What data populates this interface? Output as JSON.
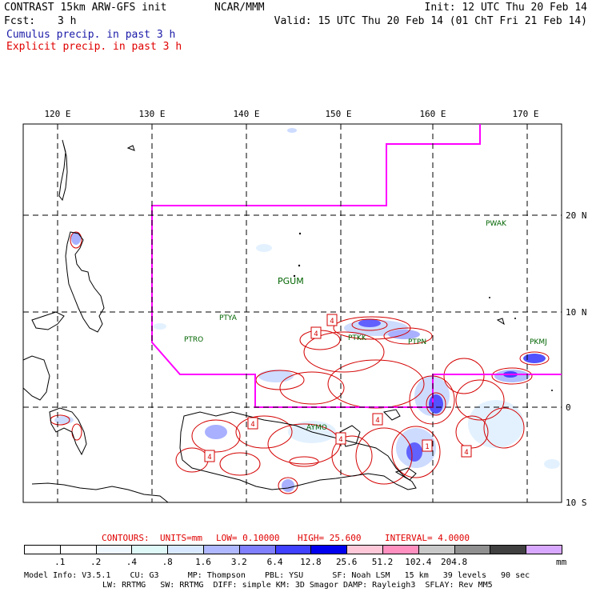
{
  "header": {
    "title": "CONTRAST 15km ARW-GFS init",
    "org": "NCAR/MMM",
    "init": "Init: 12 UTC Thu 20 Feb 14",
    "fcst_label": "Fcst:",
    "fcst_value": "3 h",
    "valid": "Valid: 15 UTC Thu 20 Feb 14 (01 ChT Fri 21 Feb 14)",
    "legend_cumulus": "Cumulus precip. in past 3 h",
    "legend_explicit": "Explicit precip. in past 3 h"
  },
  "colors": {
    "cumulus_text": "#1a1aa8",
    "explicit_text": "#e00000",
    "boundary": "#ff00ff",
    "contour": "#d40000",
    "station": "#006400"
  },
  "map": {
    "lon_labels": [
      "120 E",
      "130 E",
      "140 E",
      "150 E",
      "160 E",
      "170 E"
    ],
    "lat_labels": [
      "20 N",
      "10 N",
      "0",
      "10 S"
    ],
    "stations": [
      {
        "id": "PWAK",
        "name": "PWAK"
      },
      {
        "id": "PGUM",
        "name": "PGUM"
      },
      {
        "id": "PTYA",
        "name": "PTYA"
      },
      {
        "id": "PTRO",
        "name": "PTRO"
      },
      {
        "id": "PTKK",
        "name": "PTKK"
      },
      {
        "id": "PTPN",
        "name": "PTPN"
      },
      {
        "id": "PKMJ",
        "name": "PKMJ"
      },
      {
        "id": "AYMO",
        "name": "AYMO"
      }
    ],
    "contour_labels": [
      "4",
      "4",
      "4",
      "4",
      "4",
      "4",
      "4",
      "1"
    ]
  },
  "contours": {
    "label": "CONTOURS:",
    "units": "UNITS=mm",
    "low": "LOW= 0.10000",
    "high": "HIGH= 25.600",
    "interval": "INTERVAL= 4.0000"
  },
  "colorbar": {
    "labels": [
      ".1",
      ".2",
      ".4",
      ".8",
      "1.6",
      "3.2",
      "6.4",
      "12.8",
      "25.6",
      "51.2",
      "102.4",
      "204.8"
    ],
    "unit": "mm",
    "colors": [
      "#ffffff",
      "#ffffff",
      "#f0f8ff",
      "#dff8f8",
      "#d8e8ff",
      "#b0b8ff",
      "#8080ff",
      "#4040ff",
      "#0000ee",
      "#ffc8d8",
      "#ff90c0",
      "#c8c8c8",
      "#909090",
      "#404040",
      "#d8a8ff"
    ]
  },
  "model_info": {
    "line1": "Model Info: V3.5.1    CU: G3      MP: Thompson    PBL: YSU      SF: Noah LSM   15 km   39 levels   90 sec",
    "line2": "LW: RRTMG   SW: RRTMG  DIFF: simple KM: 3D Smagor DAMP: Rayleigh3  SFLAY: Rev MM5"
  }
}
